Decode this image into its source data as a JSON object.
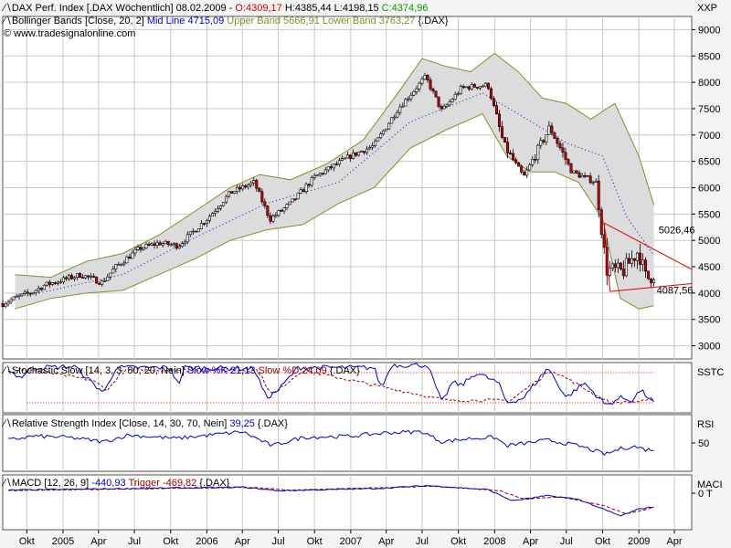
{
  "chart_data": [
    {
      "type": "candlestick",
      "panel": "price",
      "header_line1": {
        "icon": "line-chart-icon",
        "prefix": "DAX Perf. Index [.DAX  Wöchentlich] 08.02.2009 - ",
        "open": "O:4309,17",
        "high": " H:4385,44",
        "low": " L:4198,15",
        "close": " C:4374,96"
      },
      "header_line2": {
        "icon": "line-chart-icon",
        "name": "Bollinger Bands [Close, 20, 2] ",
        "mid": "Mid Line 4715,09",
        "upper": " Upper Band 5666,91",
        "lower": " Lower Band 3763,27",
        "sym": " {.DAX}"
      },
      "copyright": "© www.tradesignalonline.com",
      "unit_label": "XXP",
      "y_ticks": [
        "9000",
        "8500",
        "8000",
        "7500",
        "7000",
        "6500",
        "6000",
        "5500",
        "5000",
        "4500",
        "4000",
        "3500",
        "3000"
      ],
      "ylim": [
        2750,
        9250
      ],
      "x_start": "2004-08-01",
      "x_end": "2009-05-15",
      "closes": [
        {
          "d": "2004-08-01",
          "v": 3800
        },
        {
          "d": "2004-09-15",
          "v": 3950
        },
        {
          "d": "2004-10-10",
          "v": 4000
        },
        {
          "d": "2004-11-15",
          "v": 4150
        },
        {
          "d": "2004-12-31",
          "v": 4250
        },
        {
          "d": "2005-02-15",
          "v": 4350
        },
        {
          "d": "2005-04-10",
          "v": 4200
        },
        {
          "d": "2005-05-15",
          "v": 4500
        },
        {
          "d": "2005-07-15",
          "v": 4850
        },
        {
          "d": "2005-09-01",
          "v": 4950
        },
        {
          "d": "2005-10-20",
          "v": 4900
        },
        {
          "d": "2005-12-31",
          "v": 5400
        },
        {
          "d": "2006-03-01",
          "v": 5900
        },
        {
          "d": "2006-05-01",
          "v": 6100
        },
        {
          "d": "2006-06-10",
          "v": 5400
        },
        {
          "d": "2006-08-01",
          "v": 5700
        },
        {
          "d": "2006-10-01",
          "v": 6200
        },
        {
          "d": "2006-12-31",
          "v": 6600
        },
        {
          "d": "2007-03-01",
          "v": 6800
        },
        {
          "d": "2007-05-01",
          "v": 7500
        },
        {
          "d": "2007-07-10",
          "v": 8100
        },
        {
          "d": "2007-08-20",
          "v": 7450
        },
        {
          "d": "2007-10-10",
          "v": 7900
        },
        {
          "d": "2007-12-15",
          "v": 7950
        },
        {
          "d": "2008-01-25",
          "v": 6800
        },
        {
          "d": "2008-03-15",
          "v": 6200
        },
        {
          "d": "2008-05-20",
          "v": 7150
        },
        {
          "d": "2008-07-15",
          "v": 6300
        },
        {
          "d": "2008-09-15",
          "v": 6100
        },
        {
          "d": "2008-10-10",
          "v": 4450
        },
        {
          "d": "2008-11-20",
          "v": 4400
        },
        {
          "d": "2008-12-31",
          "v": 4810
        },
        {
          "d": "2009-01-20",
          "v": 4250
        },
        {
          "d": "2009-02-08",
          "v": 4375
        }
      ],
      "upper_band": [
        {
          "d": "2004-09-01",
          "v": 4350
        },
        {
          "d": "2004-12-01",
          "v": 4300
        },
        {
          "d": "2005-03-01",
          "v": 4600
        },
        {
          "d": "2005-06-01",
          "v": 4750
        },
        {
          "d": "2005-09-01",
          "v": 5100
        },
        {
          "d": "2005-12-01",
          "v": 5550
        },
        {
          "d": "2006-03-01",
          "v": 6000
        },
        {
          "d": "2006-05-15",
          "v": 6250
        },
        {
          "d": "2006-08-01",
          "v": 6150
        },
        {
          "d": "2006-11-01",
          "v": 6450
        },
        {
          "d": "2007-02-01",
          "v": 6900
        },
        {
          "d": "2007-05-01",
          "v": 7800
        },
        {
          "d": "2007-07-01",
          "v": 8450
        },
        {
          "d": "2007-09-01",
          "v": 8300
        },
        {
          "d": "2007-11-01",
          "v": 8200
        },
        {
          "d": "2008-01-01",
          "v": 8550
        },
        {
          "d": "2008-03-01",
          "v": 8200
        },
        {
          "d": "2008-05-01",
          "v": 7700
        },
        {
          "d": "2008-07-01",
          "v": 7600
        },
        {
          "d": "2008-09-01",
          "v": 7300
        },
        {
          "d": "2008-11-01",
          "v": 7600
        },
        {
          "d": "2009-01-01",
          "v": 6600
        },
        {
          "d": "2009-02-08",
          "v": 5670
        }
      ],
      "lower_band": [
        {
          "d": "2004-09-01",
          "v": 3700
        },
        {
          "d": "2004-12-01",
          "v": 3900
        },
        {
          "d": "2005-03-01",
          "v": 4000
        },
        {
          "d": "2005-06-01",
          "v": 4050
        },
        {
          "d": "2005-09-01",
          "v": 4350
        },
        {
          "d": "2005-12-01",
          "v": 4650
        },
        {
          "d": "2006-03-01",
          "v": 5000
        },
        {
          "d": "2006-06-01",
          "v": 5200
        },
        {
          "d": "2006-09-01",
          "v": 5300
        },
        {
          "d": "2006-12-01",
          "v": 5700
        },
        {
          "d": "2007-03-01",
          "v": 6000
        },
        {
          "d": "2007-06-01",
          "v": 6750
        },
        {
          "d": "2007-09-01",
          "v": 7100
        },
        {
          "d": "2007-12-01",
          "v": 7400
        },
        {
          "d": "2008-02-01",
          "v": 6600
        },
        {
          "d": "2008-04-01",
          "v": 6300
        },
        {
          "d": "2008-06-01",
          "v": 6300
        },
        {
          "d": "2008-08-01",
          "v": 6100
        },
        {
          "d": "2008-10-01",
          "v": 5400
        },
        {
          "d": "2008-11-15",
          "v": 3900
        },
        {
          "d": "2009-01-01",
          "v": 3700
        },
        {
          "d": "2009-02-08",
          "v": 3760
        }
      ],
      "mid_line": [
        {
          "d": "2004-11-01",
          "v": 4000
        },
        {
          "d": "2005-06-01",
          "v": 4350
        },
        {
          "d": "2005-12-01",
          "v": 5050
        },
        {
          "d": "2006-06-01",
          "v": 5700
        },
        {
          "d": "2006-12-01",
          "v": 6100
        },
        {
          "d": "2007-06-01",
          "v": 7250
        },
        {
          "d": "2007-12-01",
          "v": 7800
        },
        {
          "d": "2008-03-01",
          "v": 7400
        },
        {
          "d": "2008-07-01",
          "v": 6850
        },
        {
          "d": "2008-10-01",
          "v": 6600
        },
        {
          "d": "2008-12-01",
          "v": 5450
        },
        {
          "d": "2009-02-08",
          "v": 4715
        }
      ],
      "trendlines": [
        {
          "from": {
            "d": "2008-10-05",
            "v": 5330
          },
          "to": {
            "d": "2009-05-15",
            "v": 4450
          }
        },
        {
          "from": {
            "d": "2008-10-20",
            "v": 4030
          },
          "to": {
            "d": "2009-05-15",
            "v": 4180
          }
        }
      ],
      "annotations": [
        {
          "text": "5026,46",
          "d": "2009-02-20",
          "v": 5130
        },
        {
          "text": "4087,56",
          "d": "2009-02-15",
          "v": 3990
        }
      ]
    },
    {
      "type": "line",
      "panel": "stochastic",
      "header": {
        "name": "Stochastic Slow [14, 3, 3, 80, 20, Nein] ",
        "k": "Slow %K 21,13",
        "d": " Slow %D 24,09",
        "sym": " {.DAX}"
      },
      "unit_label": "SSTC",
      "ylim": [
        0,
        100
      ],
      "levels": [
        80,
        20
      ],
      "k": [
        {
          "d": "2004-08-15",
          "v": 85
        },
        {
          "d": "2004-09-15",
          "v": 70
        },
        {
          "d": "2004-10-15",
          "v": 90
        },
        {
          "d": "2005-02-01",
          "v": 92
        },
        {
          "d": "2005-03-15",
          "v": 60
        },
        {
          "d": "2005-04-15",
          "v": 40
        },
        {
          "d": "2005-05-15",
          "v": 90
        },
        {
          "d": "2005-10-01",
          "v": 90
        },
        {
          "d": "2005-10-20",
          "v": 55
        },
        {
          "d": "2005-11-05",
          "v": 90
        },
        {
          "d": "2006-05-01",
          "v": 88
        },
        {
          "d": "2006-06-01",
          "v": 30
        },
        {
          "d": "2006-07-01",
          "v": 45
        },
        {
          "d": "2006-08-20",
          "v": 90
        },
        {
          "d": "2007-03-01",
          "v": 90
        },
        {
          "d": "2007-03-20",
          "v": 50
        },
        {
          "d": "2007-04-15",
          "v": 95
        },
        {
          "d": "2007-07-15",
          "v": 95
        },
        {
          "d": "2007-08-20",
          "v": 20
        },
        {
          "d": "2007-09-15",
          "v": 60
        },
        {
          "d": "2007-10-10",
          "v": 55
        },
        {
          "d": "2007-11-15",
          "v": 80
        },
        {
          "d": "2008-01-10",
          "v": 60
        },
        {
          "d": "2008-02-01",
          "v": 20
        },
        {
          "d": "2008-03-15",
          "v": 30
        },
        {
          "d": "2008-05-15",
          "v": 90
        },
        {
          "d": "2008-07-01",
          "v": 30
        },
        {
          "d": "2008-08-15",
          "v": 60
        },
        {
          "d": "2008-10-10",
          "v": 15
        },
        {
          "d": "2008-11-15",
          "v": 30
        },
        {
          "d": "2008-12-15",
          "v": 25
        },
        {
          "d": "2009-01-05",
          "v": 45
        },
        {
          "d": "2009-02-08",
          "v": 21
        }
      ],
      "d": [
        {
          "d": "2004-08-15",
          "v": 82
        },
        {
          "d": "2004-10-15",
          "v": 85
        },
        {
          "d": "2005-03-15",
          "v": 65
        },
        {
          "d": "2005-04-25",
          "v": 45
        },
        {
          "d": "2005-06-01",
          "v": 85
        },
        {
          "d": "2006-05-10",
          "v": 85
        },
        {
          "d": "2006-06-15",
          "v": 35
        },
        {
          "d": "2006-09-01",
          "v": 85
        },
        {
          "d": "2007-08-30",
          "v": 25
        },
        {
          "d": "2008-02-10",
          "v": 25
        },
        {
          "d": "2008-05-25",
          "v": 85
        },
        {
          "d": "2008-10-20",
          "v": 20
        },
        {
          "d": "2009-02-08",
          "v": 24
        }
      ]
    },
    {
      "type": "line",
      "panel": "rsi",
      "header": {
        "name": "Relative Strength Index [Close, 14, 30, 70, Nein] ",
        "value": "39,25",
        "sym": " {.DAX}"
      },
      "unit_label": "RSI",
      "y_ticks": [
        "50"
      ],
      "ylim": [
        0,
        100
      ],
      "values": [
        {
          "d": "2004-08-15",
          "v": 55
        },
        {
          "d": "2004-10-15",
          "v": 62
        },
        {
          "d": "2005-01-15",
          "v": 60
        },
        {
          "d": "2005-04-15",
          "v": 52
        },
        {
          "d": "2005-06-15",
          "v": 64
        },
        {
          "d": "2005-10-15",
          "v": 58
        },
        {
          "d": "2006-04-01",
          "v": 70
        },
        {
          "d": "2006-06-15",
          "v": 45
        },
        {
          "d": "2006-09-01",
          "v": 60
        },
        {
          "d": "2007-01-01",
          "v": 62
        },
        {
          "d": "2007-04-01",
          "v": 68
        },
        {
          "d": "2007-07-01",
          "v": 70
        },
        {
          "d": "2007-08-20",
          "v": 52
        },
        {
          "d": "2007-11-01",
          "v": 58
        },
        {
          "d": "2008-01-01",
          "v": 60
        },
        {
          "d": "2008-02-01",
          "v": 45
        },
        {
          "d": "2008-05-15",
          "v": 55
        },
        {
          "d": "2008-08-01",
          "v": 45
        },
        {
          "d": "2008-10-10",
          "v": 30
        },
        {
          "d": "2008-11-15",
          "v": 40
        },
        {
          "d": "2008-12-20",
          "v": 44
        },
        {
          "d": "2009-01-20",
          "v": 38
        },
        {
          "d": "2009-02-08",
          "v": 39
        }
      ]
    },
    {
      "type": "line",
      "panel": "macd",
      "header": {
        "name": "MACD [12, 26, 9] ",
        "value": "-440,93",
        "trigger": " Trigger -469,82",
        "sym": " {.DAX}"
      },
      "unit_label": "MACI",
      "y_ticks": [
        "0 T"
      ],
      "ylim": [
        -1200,
        600
      ],
      "macd": [
        {
          "d": "2004-08-15",
          "v": 100
        },
        {
          "d": "2005-06-01",
          "v": 150
        },
        {
          "d": "2006-04-01",
          "v": 200
        },
        {
          "d": "2006-07-01",
          "v": 80
        },
        {
          "d": "2007-03-01",
          "v": 150
        },
        {
          "d": "2007-07-15",
          "v": 250
        },
        {
          "d": "2007-12-15",
          "v": 120
        },
        {
          "d": "2008-02-15",
          "v": -250
        },
        {
          "d": "2008-05-15",
          "v": -80
        },
        {
          "d": "2008-08-01",
          "v": -200
        },
        {
          "d": "2008-11-15",
          "v": -750
        },
        {
          "d": "2009-01-01",
          "v": -520
        },
        {
          "d": "2009-02-08",
          "v": -441
        }
      ],
      "trigger": [
        {
          "d": "2004-08-15",
          "v": 90
        },
        {
          "d": "2006-05-01",
          "v": 190
        },
        {
          "d": "2006-08-01",
          "v": 100
        },
        {
          "d": "2007-08-01",
          "v": 230
        },
        {
          "d": "2008-01-15",
          "v": 80
        },
        {
          "d": "2008-03-15",
          "v": -200
        },
        {
          "d": "2008-06-15",
          "v": -120
        },
        {
          "d": "2008-10-01",
          "v": -400
        },
        {
          "d": "2008-12-01",
          "v": -680
        },
        {
          "d": "2009-02-08",
          "v": -470
        }
      ]
    }
  ],
  "x_axis": {
    "ticks": [
      {
        "label": "Okt",
        "d": "2004-10-01"
      },
      {
        "label": "2005",
        "d": "2005-01-01"
      },
      {
        "label": "Apr",
        "d": "2005-04-01"
      },
      {
        "label": "Jul",
        "d": "2005-07-01"
      },
      {
        "label": "Okt",
        "d": "2005-10-01"
      },
      {
        "label": "2006",
        "d": "2006-01-01"
      },
      {
        "label": "Apr",
        "d": "2006-04-01"
      },
      {
        "label": "Jul",
        "d": "2006-07-01"
      },
      {
        "label": "Okt",
        "d": "2006-10-01"
      },
      {
        "label": "2007",
        "d": "2007-01-01"
      },
      {
        "label": "Apr",
        "d": "2007-04-01"
      },
      {
        "label": "Jul",
        "d": "2007-07-01"
      },
      {
        "label": "Okt",
        "d": "2007-10-01"
      },
      {
        "label": "2008",
        "d": "2008-01-01"
      },
      {
        "label": "Apr",
        "d": "2008-04-01"
      },
      {
        "label": "Jul",
        "d": "2008-07-01"
      },
      {
        "label": "Okt",
        "d": "2008-10-01"
      },
      {
        "label": "2009",
        "d": "2009-01-01"
      },
      {
        "label": "Apr",
        "d": "2009-04-01"
      }
    ]
  },
  "colors": {
    "background": "#ffffff",
    "frame": "#f4f4f4",
    "grid": "#bdd0bd",
    "band_fill": "#dcdcdc",
    "band_line": "#8a8a2a",
    "mid_line": "#0000cc",
    "candle_up": "#00aa00",
    "candle_down": "#cc0000",
    "trendline": "#e00000",
    "stoch_k": "#0000cc",
    "stoch_d": "#990000",
    "level": "#ff0000",
    "header_open": "#cc0000",
    "header_high": "#000000",
    "header_low": "#000000",
    "header_close": "#009900",
    "header_mid": "#0000cc",
    "header_upper": "#8a8a2a",
    "header_lower": "#8a8a2a"
  }
}
